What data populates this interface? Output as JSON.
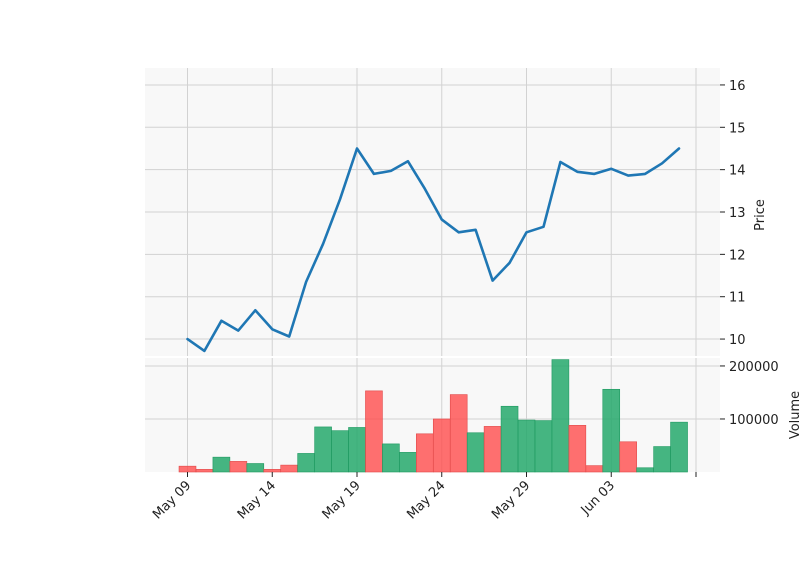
{
  "chart_data": [
    {
      "type": "line",
      "ylabel": "Price",
      "ylim": [
        9.6,
        16.4
      ],
      "yticks": [
        10,
        11,
        12,
        13,
        14,
        15,
        16
      ],
      "x": [
        "May 09",
        "May 10",
        "May 11",
        "May 12",
        "May 13",
        "May 14",
        "May 15",
        "May 16",
        "May 17",
        "May 18",
        "May 19",
        "May 20",
        "May 21",
        "May 22",
        "May 23",
        "May 24",
        "May 25",
        "May 26",
        "May 27",
        "May 28",
        "May 29",
        "May 30",
        "May 31",
        "Jun 01",
        "Jun 02",
        "Jun 03",
        "Jun 04",
        "Jun 05",
        "Jun 06",
        "Jun 07"
      ],
      "series": [
        {
          "values": [
            10.0,
            9.72,
            10.43,
            10.2,
            10.68,
            10.23,
            10.06,
            11.35,
            12.25,
            13.3,
            14.5,
            13.9,
            13.97,
            14.2,
            13.55,
            12.82,
            12.52,
            12.58,
            11.38,
            11.8,
            12.52,
            12.65,
            14.18,
            13.95,
            13.9,
            14.02,
            13.86,
            13.9,
            14.15,
            14.5
          ],
          "color": "#1f77b4"
        }
      ],
      "grid": true
    },
    {
      "type": "bar",
      "ylabel": "Volume",
      "ylim": [
        0,
        215000
      ],
      "yticks": [
        100000,
        200000
      ],
      "xticks": [
        "May 09",
        "May 14",
        "May 19",
        "May 24",
        "May 29",
        "Jun 03",
        ""
      ],
      "categories": [
        "May 09",
        "May 10",
        "May 11",
        "May 12",
        "May 13",
        "May 14",
        "May 15",
        "May 16",
        "May 17",
        "May 18",
        "May 19",
        "May 20",
        "May 21",
        "May 22",
        "May 23",
        "May 24",
        "May 25",
        "May 26",
        "May 27",
        "May 28",
        "May 29",
        "May 30",
        "May 31",
        "Jun 01",
        "Jun 02",
        "Jun 03",
        "Jun 04",
        "Jun 05",
        "Jun 06",
        "Jun 07"
      ],
      "values": [
        11000,
        5000,
        28000,
        20000,
        16000,
        5000,
        13000,
        35000,
        85000,
        78000,
        84000,
        153000,
        53000,
        37000,
        72000,
        100000,
        146000,
        74000,
        86000,
        124000,
        98000,
        97000,
        212000,
        88000,
        12000,
        156000,
        57000,
        8000,
        48000,
        94000
      ],
      "direction": [
        "down",
        "down",
        "up",
        "down",
        "up",
        "down",
        "down",
        "up",
        "up",
        "up",
        "up",
        "down",
        "up",
        "up",
        "down",
        "down",
        "down",
        "up",
        "down",
        "up",
        "up",
        "up",
        "up",
        "down",
        "down",
        "up",
        "down",
        "up",
        "up",
        "up"
      ],
      "colors": {
        "up": "#26a96c",
        "down": "#ff4c4c"
      },
      "grid": true
    }
  ]
}
